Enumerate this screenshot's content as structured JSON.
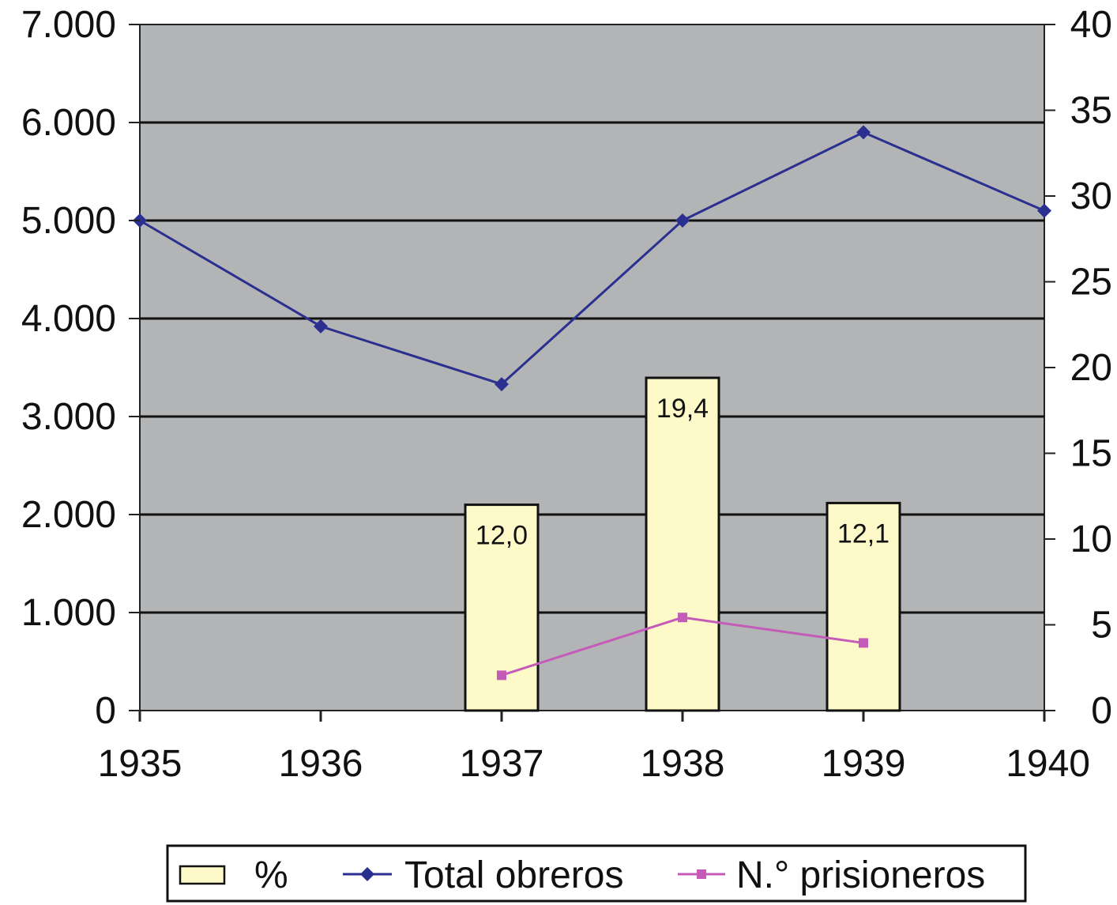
{
  "chart_data": {
    "type": "bar",
    "title": "",
    "x": [
      "1935",
      "1936",
      "1937",
      "1938",
      "1939",
      "1940"
    ],
    "y_left": {
      "ylim": [
        0,
        7000
      ],
      "ticks": [
        "0",
        "1.000",
        "2.000",
        "3.000",
        "4.000",
        "5.000",
        "6.000",
        "7.000"
      ]
    },
    "y_right": {
      "ylim": [
        0,
        40
      ],
      "ticks": [
        "0",
        "5",
        "10",
        "15",
        "20",
        "25",
        "30",
        "35",
        "40"
      ]
    },
    "series": [
      {
        "name": "%",
        "kind": "bar",
        "axis": "right",
        "color": "#fdf9c8",
        "values": [
          null,
          null,
          12.0,
          19.4,
          12.1,
          null
        ],
        "labels": [
          null,
          null,
          "12,0",
          "19,4",
          "12,1",
          null
        ]
      },
      {
        "name": "Total obreros",
        "kind": "line",
        "axis": "left",
        "color": "#2b2f8f",
        "marker": "diamond",
        "values": [
          5000,
          3920,
          3330,
          5000,
          5900,
          5100
        ]
      },
      {
        "name": "N.° prisioneros",
        "kind": "line",
        "axis": "left",
        "color": "#c55bb8",
        "marker": "square",
        "values": [
          null,
          null,
          360,
          950,
          690,
          null
        ]
      }
    ],
    "grid": true,
    "background": "#b2b4b5",
    "legend_position": "bottom"
  }
}
